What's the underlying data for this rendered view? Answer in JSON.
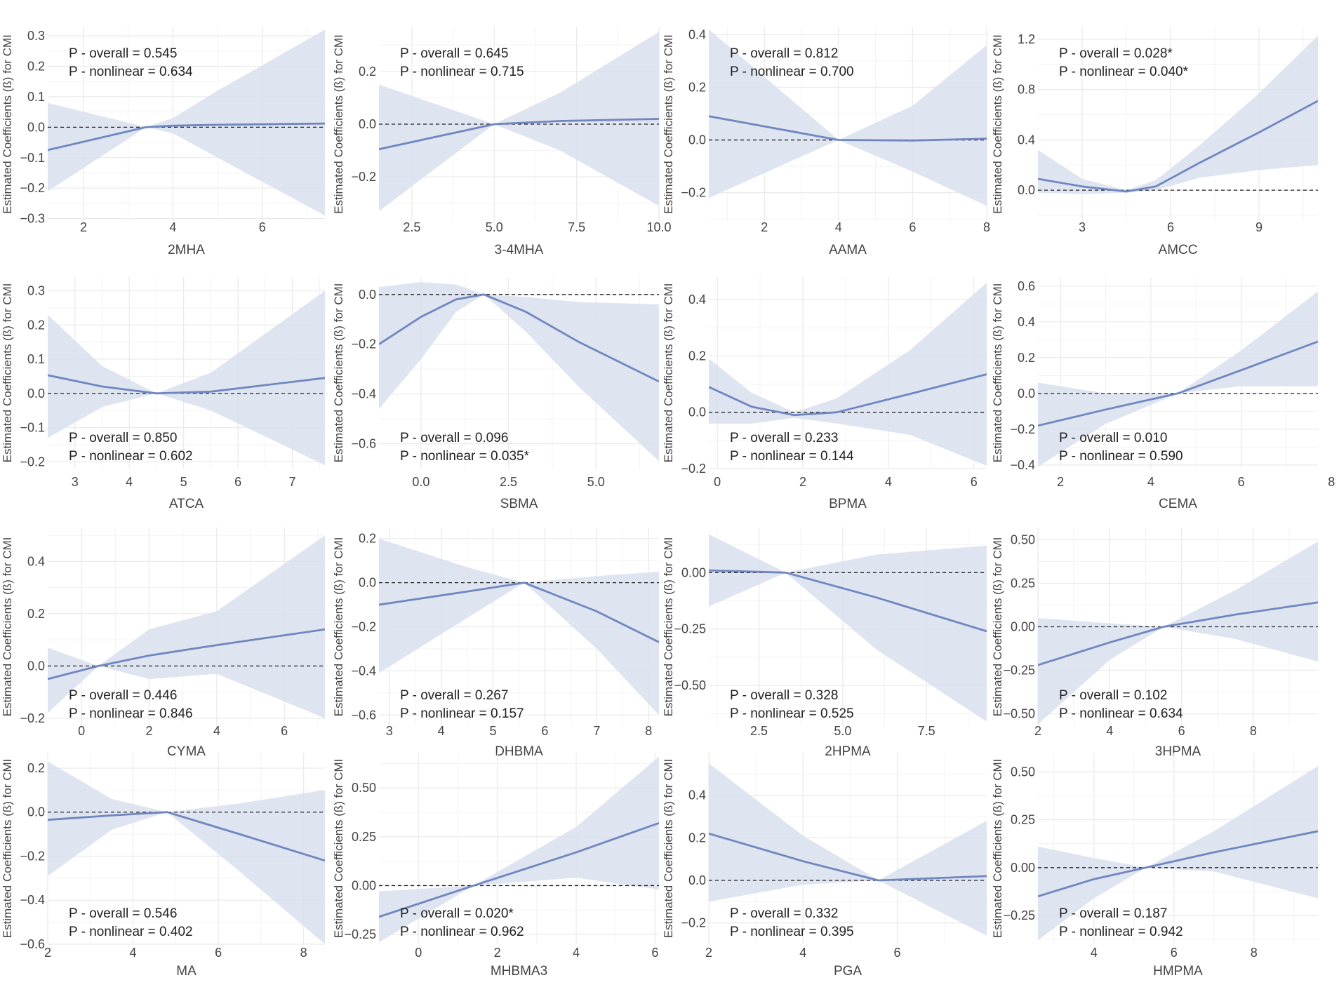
{
  "figure": {
    "ylabel": "Estimated Coefficients (ß) for CMI"
  },
  "colors": {
    "line": "#6f86bf",
    "band": "#d9dfee",
    "grid": "#ebebeb",
    "text": "#444444",
    "zero": "#222222"
  },
  "chart_data": [
    {
      "type": "line",
      "title": "",
      "xlabel": "2MHA",
      "ylabel": "Estimated Coefficients (ß) for CMI",
      "xlim": [
        1.2,
        7.4
      ],
      "ylim": [
        -0.31,
        0.33
      ],
      "xticks": [
        2,
        4,
        6
      ],
      "yticks": [
        -0.3,
        -0.2,
        -0.1,
        0.0,
        0.1,
        0.2,
        0.3
      ],
      "ytick_labels": [
        "−0.3",
        "−0.2",
        "−0.1",
        "0.0",
        "0.1",
        "0.2",
        "0.3"
      ],
      "x": [
        1.2,
        3.4,
        4.0,
        5.0,
        7.4
      ],
      "y": [
        -0.075,
        0.0,
        0.005,
        0.008,
        0.012
      ],
      "lower": [
        -0.21,
        0.0,
        -0.02,
        -0.1,
        -0.29
      ],
      "upper": [
        0.08,
        0.0,
        0.03,
        0.12,
        0.32
      ],
      "annotation": [
        "P - overall = 0.545",
        "P - nonlinear = 0.634"
      ],
      "annotation_pos": "top"
    },
    {
      "type": "line",
      "title": "",
      "xlabel": "3-4MHA",
      "ylabel": "Estimated Coefficients (ß) for CMI",
      "xlim": [
        1.5,
        10
      ],
      "ylim": [
        -0.37,
        0.37
      ],
      "xticks": [
        2.5,
        5.0,
        7.5,
        10.0
      ],
      "xtick_labels": [
        "2.5",
        "5.0",
        "7.5",
        "10.0"
      ],
      "yticks": [
        -0.2,
        0.0,
        0.2
      ],
      "ytick_labels": [
        "−0.2",
        "0.0",
        "0.2"
      ],
      "x": [
        1.5,
        5.0,
        7.0,
        10.0
      ],
      "y": [
        -0.095,
        0.0,
        0.012,
        0.02
      ],
      "lower": [
        -0.33,
        0.0,
        -0.1,
        -0.31
      ],
      "upper": [
        0.15,
        0.0,
        0.12,
        0.35
      ],
      "annotation": [
        "P - overall = 0.645",
        "P - nonlinear = 0.715"
      ],
      "annotation_pos": "top"
    },
    {
      "type": "line",
      "title": "",
      "xlabel": "AAMA",
      "ylabel": "Estimated Coefficients (ß) for CMI",
      "xlim": [
        0.5,
        8
      ],
      "ylim": [
        -0.31,
        0.43
      ],
      "xticks": [
        2,
        4,
        6,
        8
      ],
      "yticks": [
        -0.2,
        0.0,
        0.2,
        0.4
      ],
      "ytick_labels": [
        "−0.2",
        "0.0",
        "0.2",
        "0.4"
      ],
      "x": [
        0.5,
        4.0,
        6.0,
        8.0
      ],
      "y": [
        0.09,
        0.0,
        -0.002,
        0.005
      ],
      "lower": [
        -0.22,
        0.0,
        -0.12,
        -0.25
      ],
      "upper": [
        0.42,
        0.0,
        0.13,
        0.36
      ],
      "annotation": [
        "P - overall = 0.812",
        "P - nonlinear = 0.700"
      ],
      "annotation_pos": "top"
    },
    {
      "type": "line",
      "title": "",
      "xlabel": "AMCC",
      "ylabel": "Estimated Coefficients (ß) for CMI",
      "xlim": [
        1.5,
        11
      ],
      "ylim": [
        -0.25,
        1.3
      ],
      "xticks": [
        3,
        6,
        9
      ],
      "yticks": [
        0.0,
        0.4,
        0.8,
        1.2
      ],
      "ytick_labels": [
        "0.0",
        "0.4",
        "0.8",
        "1.2"
      ],
      "x": [
        1.5,
        3.0,
        4.5,
        5.5,
        7.0,
        9.0,
        11.0
      ],
      "y": [
        0.09,
        0.03,
        -0.01,
        0.03,
        0.22,
        0.46,
        0.71
      ],
      "lower": [
        -0.02,
        -0.03,
        -0.02,
        0.0,
        0.1,
        0.16,
        0.2
      ],
      "upper": [
        0.32,
        0.09,
        0.0,
        0.08,
        0.36,
        0.77,
        1.23
      ],
      "annotation": [
        "P - overall = 0.028*",
        "P - nonlinear = 0.040*"
      ],
      "annotation_pos": "top"
    },
    {
      "type": "line",
      "title": "",
      "xlabel": "ATCA",
      "ylabel": "Estimated Coefficients (ß) for CMI",
      "xlim": [
        2.5,
        7.6
      ],
      "ylim": [
        -0.22,
        0.34
      ],
      "xticks": [
        3,
        4,
        5,
        6,
        7
      ],
      "yticks": [
        -0.2,
        -0.1,
        0.0,
        0.1,
        0.2,
        0.3
      ],
      "ytick_labels": [
        "−0.2",
        "−0.1",
        "0.0",
        "0.1",
        "0.2",
        "0.3"
      ],
      "x": [
        2.5,
        3.5,
        4.5,
        5.5,
        7.6
      ],
      "y": [
        0.053,
        0.02,
        0.0,
        0.005,
        0.045
      ],
      "lower": [
        -0.13,
        -0.04,
        0.0,
        -0.05,
        -0.21
      ],
      "upper": [
        0.23,
        0.08,
        0.0,
        0.06,
        0.3
      ],
      "annotation": [
        "P - overall = 0.850",
        "P - nonlinear = 0.602"
      ],
      "annotation_pos": "bottom"
    },
    {
      "type": "line",
      "title": "",
      "xlabel": "SBMA",
      "ylabel": "Estimated Coefficients (ß) for CMI",
      "xlim": [
        -1.2,
        6.8
      ],
      "ylim": [
        -0.7,
        0.07
      ],
      "xticks": [
        0.0,
        2.5,
        5.0
      ],
      "xtick_labels": [
        "0.0",
        "2.5",
        "5.0"
      ],
      "yticks": [
        -0.6,
        -0.4,
        -0.2,
        0.0
      ],
      "ytick_labels": [
        "−0.6",
        "−0.4",
        "−0.2",
        "0.0"
      ],
      "x": [
        -1.2,
        0.0,
        1.0,
        1.8,
        3.0,
        4.5,
        6.8
      ],
      "y": [
        -0.2,
        -0.09,
        -0.02,
        0.0,
        -0.07,
        -0.19,
        -0.35
      ],
      "lower": [
        -0.46,
        -0.26,
        -0.07,
        0.0,
        -0.15,
        -0.37,
        -0.67
      ],
      "upper": [
        0.03,
        0.05,
        0.04,
        0.0,
        -0.01,
        -0.03,
        -0.04
      ],
      "annotation": [
        "P - overall = 0.096",
        "P - nonlinear = 0.035*"
      ],
      "annotation_pos": "bottom"
    },
    {
      "type": "line",
      "title": "",
      "xlabel": "BPMA",
      "ylabel": "Estimated Coefficients (ß) for CMI",
      "xlim": [
        -0.2,
        6.3
      ],
      "ylim": [
        -0.2,
        0.48
      ],
      "xticks": [
        0,
        2,
        4,
        6
      ],
      "yticks": [
        -0.2,
        0.0,
        0.2,
        0.4
      ],
      "ytick_labels": [
        "−0.2",
        "0.0",
        "0.2",
        "0.4"
      ],
      "x": [
        -0.2,
        0.8,
        1.8,
        2.8,
        4.5,
        6.3
      ],
      "y": [
        0.09,
        0.02,
        -0.01,
        0.0,
        0.065,
        0.135
      ],
      "lower": [
        -0.04,
        -0.04,
        -0.02,
        -0.04,
        -0.08,
        -0.19
      ],
      "upper": [
        0.19,
        0.07,
        0.0,
        0.05,
        0.22,
        0.46
      ],
      "annotation": [
        "P - overall = 0.233",
        "P - nonlinear = 0.144"
      ],
      "annotation_pos": "bottom"
    },
    {
      "type": "line",
      "title": "",
      "xlabel": "CEMA",
      "ylabel": "Estimated Coefficients (ß) for CMI",
      "xlim": [
        1.5,
        7.7
      ],
      "ylim": [
        -0.42,
        0.65
      ],
      "xticks": [
        2,
        4,
        6,
        8
      ],
      "yticks": [
        -0.4,
        -0.2,
        0.0,
        0.2,
        0.4,
        0.6
      ],
      "ytick_labels": [
        "−0.4",
        "−0.2",
        "0.0",
        "0.2",
        "0.4",
        "0.6"
      ],
      "x": [
        1.5,
        3.0,
        4.6,
        6.0,
        7.7
      ],
      "y": [
        -0.18,
        -0.09,
        0.0,
        0.13,
        0.29
      ],
      "lower": [
        -0.41,
        -0.17,
        0.0,
        0.04,
        0.04
      ],
      "upper": [
        0.06,
        0.0,
        0.0,
        0.24,
        0.57
      ],
      "annotation": [
        "P - overall = 0.010",
        "P - nonlinear = 0.590"
      ],
      "annotation_pos": "bottom"
    },
    {
      "type": "line",
      "title": "",
      "xlabel": "CYMA",
      "ylabel": "Estimated Coefficients (ß) for CMI",
      "xlim": [
        -1.0,
        7.2
      ],
      "ylim": [
        -0.23,
        0.53
      ],
      "xticks": [
        0,
        2,
        4,
        6
      ],
      "yticks": [
        -0.2,
        0.0,
        0.2,
        0.4
      ],
      "ytick_labels": [
        "−0.2",
        "0.0",
        "0.2",
        "0.4"
      ],
      "x": [
        -1.0,
        0.5,
        2.0,
        4.0,
        7.2
      ],
      "y": [
        -0.05,
        0.0,
        0.04,
        0.08,
        0.14
      ],
      "lower": [
        -0.18,
        0.0,
        -0.05,
        -0.03,
        -0.2
      ],
      "upper": [
        0.07,
        0.0,
        0.14,
        0.21,
        0.5
      ],
      "annotation": [
        "P - overall = 0.446",
        "P - nonlinear = 0.846"
      ],
      "annotation_pos": "bottom"
    },
    {
      "type": "line",
      "title": "",
      "xlabel": "DHBMA",
      "ylabel": "Estimated Coefficients (ß) for CMI",
      "xlim": [
        2.8,
        8.2
      ],
      "ylim": [
        -0.65,
        0.25
      ],
      "xticks": [
        3,
        4,
        5,
        6,
        7,
        8
      ],
      "yticks": [
        -0.6,
        -0.4,
        -0.2,
        0.0,
        0.2
      ],
      "ytick_labels": [
        "−0.6",
        "−0.4",
        "−0.2",
        "0.0",
        "0.2"
      ],
      "x": [
        2.8,
        4.5,
        5.6,
        7.0,
        8.2
      ],
      "y": [
        -0.1,
        -0.04,
        0.0,
        -0.13,
        -0.27
      ],
      "lower": [
        -0.41,
        -0.16,
        0.0,
        -0.3,
        -0.6
      ],
      "upper": [
        0.2,
        0.07,
        0.0,
        0.03,
        0.05
      ],
      "annotation": [
        "P - overall = 0.267",
        "P - nonlinear = 0.157"
      ],
      "annotation_pos": "bottom"
    },
    {
      "type": "line",
      "title": "",
      "xlabel": "2HPMA",
      "ylabel": "Estimated Coefficients (ß) for CMI",
      "xlim": [
        1.0,
        9.3
      ],
      "ylim": [
        -0.68,
        0.2
      ],
      "xticks": [
        2.5,
        5.0,
        7.5
      ],
      "xtick_labels": [
        "2.5",
        "5.0",
        "7.5"
      ],
      "yticks": [
        -0.5,
        -0.25,
        0.0
      ],
      "ytick_labels": [
        "−0.50",
        "−0.25",
        "0.00"
      ],
      "x": [
        1.0,
        3.3,
        6.0,
        9.3
      ],
      "y": [
        0.01,
        0.0,
        -0.11,
        -0.26
      ],
      "lower": [
        -0.15,
        0.0,
        -0.34,
        -0.66
      ],
      "upper": [
        0.17,
        0.0,
        0.08,
        0.12
      ],
      "annotation": [
        "P - overall = 0.328",
        "P - nonlinear = 0.525"
      ],
      "annotation_pos": "bottom"
    },
    {
      "type": "line",
      "title": "",
      "xlabel": "3HPMA",
      "ylabel": "Estimated Coefficients (ß) for CMI",
      "xlim": [
        2.0,
        9.8
      ],
      "ylim": [
        -0.57,
        0.57
      ],
      "xticks": [
        2,
        4,
        6,
        8
      ],
      "yticks": [
        -0.5,
        -0.25,
        0.0,
        0.25,
        0.5
      ],
      "ytick_labels": [
        "−0.50",
        "−0.25",
        "0.00",
        "0.25",
        "0.50"
      ],
      "x": [
        2.0,
        4.0,
        5.5,
        7.5,
        9.8
      ],
      "y": [
        -0.22,
        -0.09,
        0.0,
        0.07,
        0.14
      ],
      "lower": [
        -0.56,
        -0.19,
        0.0,
        -0.07,
        -0.2
      ],
      "upper": [
        0.05,
        0.02,
        0.0,
        0.21,
        0.49
      ],
      "annotation": [
        "P - overall = 0.102",
        "P - nonlinear = 0.634"
      ],
      "annotation_pos": "bottom"
    },
    {
      "type": "line",
      "title": "",
      "xlabel": "MA",
      "ylabel": "Estimated Coefficients (ß) for CMI",
      "xlim": [
        2.0,
        8.5
      ],
      "ylim": [
        -0.6,
        0.27
      ],
      "xticks": [
        2,
        4,
        6,
        8
      ],
      "yticks": [
        -0.6,
        -0.4,
        -0.2,
        0.0,
        0.2
      ],
      "ytick_labels": [
        "−0.6",
        "−0.4",
        "−0.2",
        "0.0",
        "0.2"
      ],
      "x": [
        2.0,
        3.5,
        4.8,
        6.5,
        8.5
      ],
      "y": [
        -0.035,
        -0.015,
        0.0,
        -0.1,
        -0.22
      ],
      "lower": [
        -0.29,
        -0.08,
        0.0,
        -0.27,
        -0.6
      ],
      "upper": [
        0.23,
        0.06,
        0.0,
        0.04,
        0.1
      ],
      "annotation": [
        "P - overall = 0.546",
        "P - nonlinear = 0.402"
      ],
      "annotation_pos": "bottom"
    },
    {
      "type": "line",
      "title": "",
      "xlabel": "MHBMA3",
      "ylabel": "Estimated Coefficients (ß) for CMI",
      "xlim": [
        -1.0,
        6.1
      ],
      "ylim": [
        -0.3,
        0.68
      ],
      "xticks": [
        0,
        2,
        4,
        6
      ],
      "yticks": [
        -0.25,
        0.0,
        0.25,
        0.5
      ],
      "ytick_labels": [
        "−0.25",
        "0.00",
        "0.25",
        "0.50"
      ],
      "x": [
        -1.0,
        1.4,
        4.0,
        6.1
      ],
      "y": [
        -0.16,
        0.0,
        0.17,
        0.32
      ],
      "lower": [
        -0.29,
        0.0,
        0.04,
        -0.02
      ],
      "upper": [
        -0.03,
        0.0,
        0.3,
        0.66
      ],
      "annotation": [
        "P - overall = 0.020*",
        "P - nonlinear = 0.962"
      ],
      "annotation_pos": "bottom"
    },
    {
      "type": "line",
      "title": "",
      "xlabel": "PGA",
      "ylabel": "Estimated Coefficients (ß) for CMI",
      "xlim": [
        2.0,
        7.9
      ],
      "ylim": [
        -0.3,
        0.6
      ],
      "xticks": [
        2,
        4,
        6
      ],
      "yticks": [
        -0.2,
        0.0,
        0.2,
        0.4
      ],
      "ytick_labels": [
        "−0.2",
        "0.0",
        "0.2",
        "0.4"
      ],
      "x": [
        2.0,
        4.0,
        5.6,
        7.9
      ],
      "y": [
        0.22,
        0.09,
        0.0,
        0.02
      ],
      "lower": [
        -0.1,
        -0.02,
        0.0,
        -0.26
      ],
      "upper": [
        0.55,
        0.21,
        0.0,
        0.28
      ],
      "annotation": [
        "P - overall = 0.332",
        "P - nonlinear = 0.395"
      ],
      "annotation_pos": "bottom"
    },
    {
      "type": "line",
      "title": "",
      "xlabel": "HMPMA",
      "ylabel": "Estimated Coefficients (ß) for CMI",
      "xlim": [
        2.6,
        9.6
      ],
      "ylim": [
        -0.4,
        0.6
      ],
      "xticks": [
        4,
        6,
        8
      ],
      "yticks": [
        -0.25,
        0.0,
        0.25,
        0.5
      ],
      "ytick_labels": [
        "−0.25",
        "0.00",
        "0.25",
        "0.50"
      ],
      "x": [
        2.6,
        4.0,
        5.3,
        7.0,
        9.6
      ],
      "y": [
        -0.15,
        -0.06,
        0.0,
        0.08,
        0.19
      ],
      "lower": [
        -0.38,
        -0.16,
        0.0,
        -0.02,
        -0.16
      ],
      "upper": [
        0.11,
        0.05,
        0.0,
        0.19,
        0.53
      ],
      "annotation": [
        "P - overall = 0.187",
        "P - nonlinear = 0.942"
      ],
      "annotation_pos": "bottom"
    }
  ]
}
